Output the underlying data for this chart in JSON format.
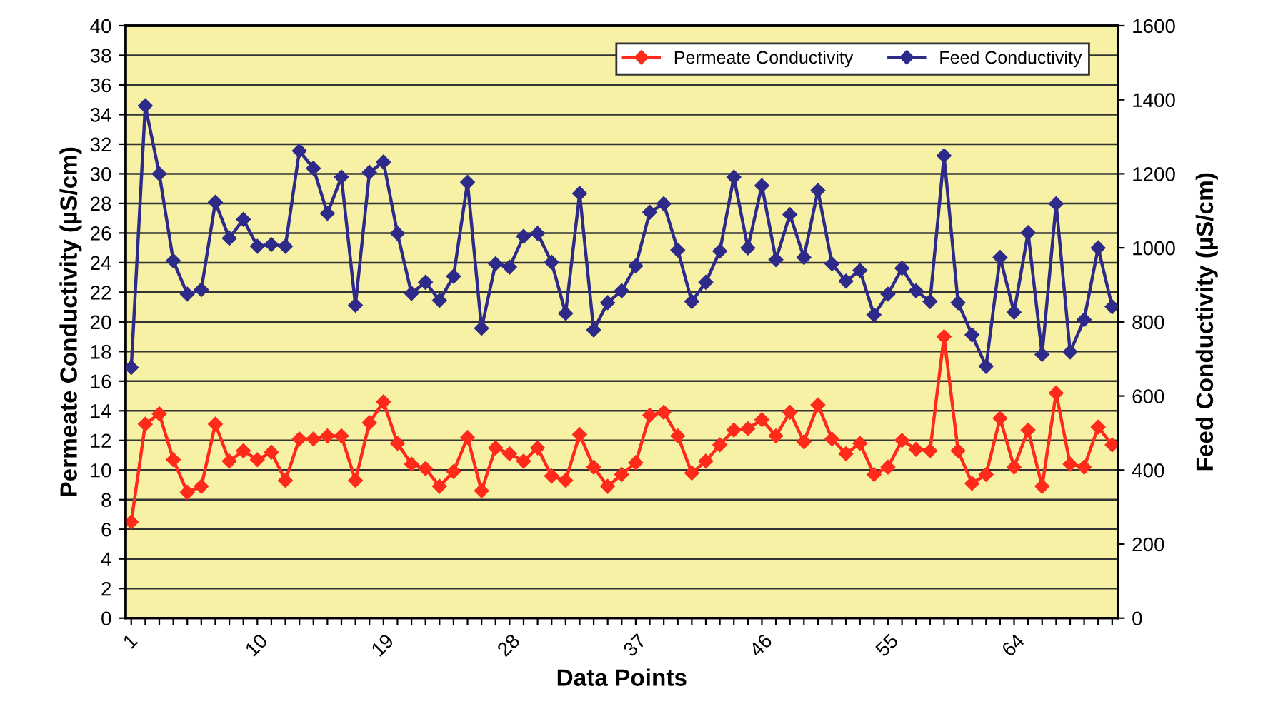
{
  "chart_data": {
    "type": "line",
    "xlabel": "Data Points",
    "ylabel": "Permeate Conductivity (µS/cm)",
    "y2label": "Feed Conductivity (µS/cm)",
    "categories": [
      "1",
      null,
      null,
      null,
      null,
      null,
      null,
      null,
      null,
      "10",
      null,
      null,
      null,
      null,
      null,
      null,
      null,
      null,
      "19",
      null,
      null,
      null,
      null,
      null,
      null,
      null,
      null,
      "28",
      null,
      null,
      null,
      null,
      null,
      null,
      null,
      null,
      "37",
      null,
      null,
      null,
      null,
      null,
      null,
      null,
      null,
      "46",
      null,
      null,
      null,
      null,
      null,
      null,
      null,
      null,
      "55",
      null,
      null,
      null,
      null,
      null,
      null,
      null,
      null,
      "64",
      null,
      null,
      null,
      null,
      null,
      null,
      null
    ],
    "series": [
      {
        "name": "Permeate Conductivity",
        "color": "#ff2a1a",
        "values": [
          6.5,
          13.1,
          13.8,
          10.7,
          8.5,
          8.9,
          13.1,
          10.6,
          11.3,
          10.7,
          11.2,
          9.3,
          12.1,
          12.1,
          12.3,
          12.3,
          9.3,
          13.2,
          14.6,
          11.8,
          10.4,
          10.1,
          8.9,
          9.9,
          12.2,
          8.6,
          11.5,
          11.1,
          10.6,
          11.5,
          9.6,
          9.3,
          12.4,
          10.2,
          8.9,
          9.7,
          10.5,
          13.7,
          13.9,
          12.3,
          9.8,
          10.6,
          11.7,
          12.7,
          12.8,
          13.4,
          12.3,
          13.9,
          11.9,
          14.4,
          12.1,
          11.1,
          11.8,
          9.7,
          10.2,
          12.0,
          11.4,
          11.3,
          19.0,
          11.3,
          9.1,
          9.7,
          13.5,
          10.2,
          12.7,
          8.9,
          15.2,
          10.4,
          10.2,
          12.9,
          11.7
        ]
      },
      {
        "name": "Feed Conductivity",
        "color": "#2e2a8a",
        "axis": "y2",
        "values": [
          677,
          1384,
          1200,
          965,
          875,
          887,
          1123,
          1026,
          1077,
          1004,
          1009,
          1004,
          1262,
          1215,
          1093,
          1191,
          845,
          1204,
          1232,
          1039,
          877,
          907,
          858,
          923,
          1177,
          783,
          957,
          948,
          1031,
          1039,
          961,
          823,
          1147,
          778,
          852,
          884,
          951,
          1096,
          1119,
          994,
          855,
          907,
          991,
          1191,
          1000,
          1168,
          968,
          1090,
          974,
          1155,
          957,
          910,
          939,
          819,
          875,
          945,
          884,
          855,
          1249,
          852,
          765,
          680,
          974,
          826,
          1041,
          712,
          1119,
          719,
          806,
          1000,
          841
        ]
      }
    ],
    "ylim": [
      0,
      40
    ],
    "yticks": [
      0,
      2,
      4,
      6,
      8,
      10,
      12,
      14,
      16,
      18,
      20,
      22,
      24,
      26,
      28,
      30,
      32,
      34,
      36,
      38,
      40
    ],
    "y2lim": [
      0,
      1600
    ],
    "y2ticks": [
      0,
      200,
      400,
      600,
      800,
      1000,
      1200,
      1400,
      1600
    ],
    "grid": "y",
    "legend": "top right",
    "marker": "diamond",
    "line_style": "solid"
  }
}
